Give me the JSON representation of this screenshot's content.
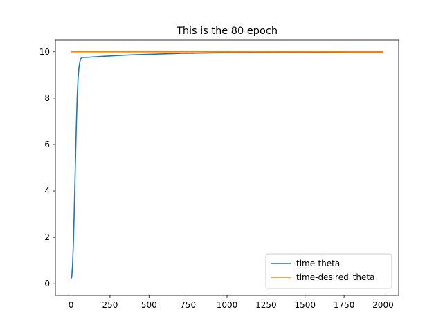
{
  "chart_data": {
    "type": "line",
    "title": "This is the 80 epoch",
    "xlabel": "",
    "ylabel": "",
    "xlim": [
      -100,
      2100
    ],
    "ylim": [
      -0.5,
      10.5
    ],
    "xticks": [
      0,
      250,
      500,
      750,
      1000,
      1250,
      1500,
      1750,
      2000
    ],
    "yticks": [
      0,
      2,
      4,
      6,
      8,
      10
    ],
    "grid": false,
    "legend_position": "lower-right",
    "series": [
      {
        "name": "time-theta",
        "color": "#1f77b4",
        "x": [
          0,
          5,
          10,
          15,
          20,
          25,
          30,
          35,
          40,
          45,
          50,
          55,
          60,
          65,
          70,
          75,
          80,
          90,
          100,
          125,
          150,
          200,
          250,
          300,
          400,
          500,
          600,
          700,
          800,
          900,
          1000,
          1200,
          1400,
          1600,
          1800,
          2000
        ],
        "y": [
          0.2,
          0.3,
          0.8,
          1.7,
          2.9,
          4.3,
          5.7,
          7.0,
          8.1,
          8.8,
          9.25,
          9.5,
          9.65,
          9.72,
          9.75,
          9.76,
          9.76,
          9.76,
          9.76,
          9.77,
          9.78,
          9.8,
          9.82,
          9.84,
          9.87,
          9.89,
          9.91,
          9.93,
          9.94,
          9.95,
          9.96,
          9.97,
          9.98,
          9.985,
          9.99,
          9.99
        ]
      },
      {
        "name": "time-desired_theta",
        "color": "#ff7f0e",
        "x": [
          0,
          2000
        ],
        "y": [
          10,
          10
        ]
      }
    ]
  }
}
